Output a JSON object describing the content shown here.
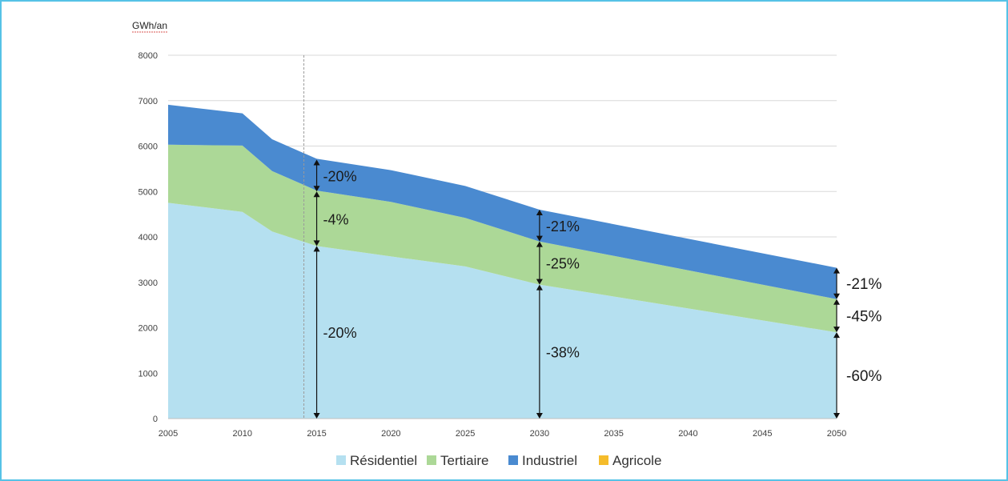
{
  "chart_data": {
    "type": "area",
    "stacked": true,
    "ylabel": "GWh/an",
    "xlabel": "",
    "title": "",
    "ylim": [
      0,
      8000
    ],
    "xlim": [
      2005,
      2050
    ],
    "y_ticks": [
      0,
      1000,
      2000,
      3000,
      4000,
      5000,
      6000,
      7000,
      8000
    ],
    "x_ticks": [
      2005,
      2010,
      2015,
      2020,
      2025,
      2030,
      2035,
      2040,
      2045,
      2050
    ],
    "grid": "horizontal",
    "legend_position": "bottom",
    "reference_line_x": 2015,
    "x": [
      2005,
      2010,
      2012,
      2015,
      2020,
      2025,
      2030,
      2050
    ],
    "series": [
      {
        "name": "Résidentiel",
        "color": "#b5e0f0",
        "values": [
          4750,
          4550,
          4120,
          3800,
          3570,
          3350,
          2950,
          1900
        ]
      },
      {
        "name": "Tertiaire",
        "color": "#acd897",
        "values": [
          1280,
          1460,
          1330,
          1220,
          1200,
          1070,
          950,
          730
        ]
      },
      {
        "name": "Industriel",
        "color": "#4a8ad0",
        "values": [
          880,
          710,
          700,
          700,
          700,
          700,
          700,
          690
        ]
      },
      {
        "name": "Agricole",
        "color": "#f5bc2b",
        "values": [
          0,
          0,
          0,
          0,
          0,
          0,
          0,
          0
        ]
      }
    ],
    "annotations": [
      {
        "x": 2015,
        "y_from": 5000,
        "y_to": 5700,
        "label": "-20%"
      },
      {
        "x": 2015,
        "y_from": 3800,
        "y_to": 5000,
        "label": "-4%"
      },
      {
        "x": 2015,
        "y_from": 0,
        "y_to": 3800,
        "label": "-20%"
      },
      {
        "x": 2030,
        "y_from": 3900,
        "y_to": 4600,
        "label": "-21%"
      },
      {
        "x": 2030,
        "y_from": 2950,
        "y_to": 3900,
        "label": "-25%"
      },
      {
        "x": 2030,
        "y_from": 0,
        "y_to": 2950,
        "label": "-38%"
      },
      {
        "x": 2050,
        "y_from": 2630,
        "y_to": 3320,
        "label": "-21%"
      },
      {
        "x": 2050,
        "y_from": 1900,
        "y_to": 2630,
        "label": "-45%"
      },
      {
        "x": 2050,
        "y_from": 0,
        "y_to": 1900,
        "label": "-60%"
      }
    ]
  }
}
